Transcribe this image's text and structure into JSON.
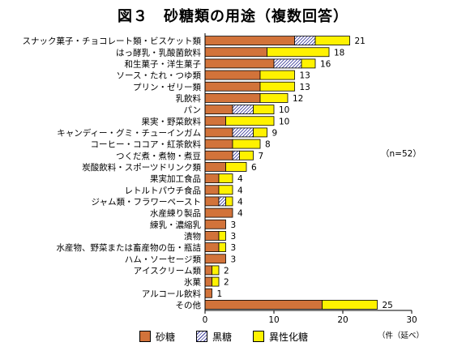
{
  "title": "図３　砂糖類の用途（複数回答）",
  "note": "（n=52）",
  "unit": "（件（延べ）",
  "colors": {
    "sugar": "#D2733A",
    "brown": "#ffffff",
    "isomer": "#FFF200",
    "edge": "#000000"
  },
  "chart_data": {
    "type": "bar",
    "orientation": "horizontal",
    "stacked": true,
    "title": "図３　砂糖類の用途（複数回答）",
    "xlim": [
      0,
      30
    ],
    "xticks": [
      0,
      10,
      20,
      30
    ],
    "legend_position": "bottom",
    "grid": false,
    "categories": [
      "スナック菓子・チョコレート類・ビスケット類",
      "はっ酵乳・乳酸菌飲料",
      "和生菓子・洋生菓子",
      "ソース・たれ・つゆ類",
      "プリン・ゼリー類",
      "乳飲料",
      "パン",
      "果実・野菜飲料",
      "キャンディー・グミ・チューインガム",
      "コーヒー・ココア・紅茶飲料",
      "つくだ煮・煮物・煮豆",
      "炭酸飲料・スポーツドリンク類",
      "果実加工食品",
      "レトルトパウチ食品",
      "ジャム類・フラワーペースト",
      "水産練り製品",
      "練乳・濃縮乳",
      "漬物",
      "水産物、野菜または畜産物の缶・瓶詰",
      "ハム・ソーセージ類",
      "アイスクリーム類",
      "氷菓",
      "アルコール飲料",
      "その他"
    ],
    "series": [
      {
        "name": "砂糖",
        "key": "sugar",
        "values": [
          13,
          9,
          10,
          8,
          8,
          8,
          4,
          3,
          4,
          4,
          4,
          3,
          2,
          2,
          2,
          4,
          3,
          2,
          2,
          3,
          1,
          1,
          1,
          17
        ]
      },
      {
        "name": "黒糖",
        "key": "brown",
        "values": [
          3,
          0,
          4,
          0,
          0,
          0,
          3,
          0,
          3,
          0,
          1,
          0,
          0,
          0,
          1,
          0,
          0,
          0,
          0,
          0,
          0,
          0,
          0,
          0
        ]
      },
      {
        "name": "異性化糖",
        "key": "isomer",
        "values": [
          5,
          9,
          2,
          5,
          5,
          4,
          3,
          7,
          2,
          4,
          2,
          3,
          2,
          2,
          1,
          0,
          0,
          1,
          1,
          0,
          1,
          1,
          0,
          8
        ]
      }
    ],
    "totals": [
      21,
      18,
      16,
      13,
      13,
      12,
      10,
      10,
      9,
      8,
      7,
      6,
      4,
      4,
      4,
      4,
      3,
      3,
      3,
      3,
      2,
      2,
      1,
      25
    ]
  }
}
